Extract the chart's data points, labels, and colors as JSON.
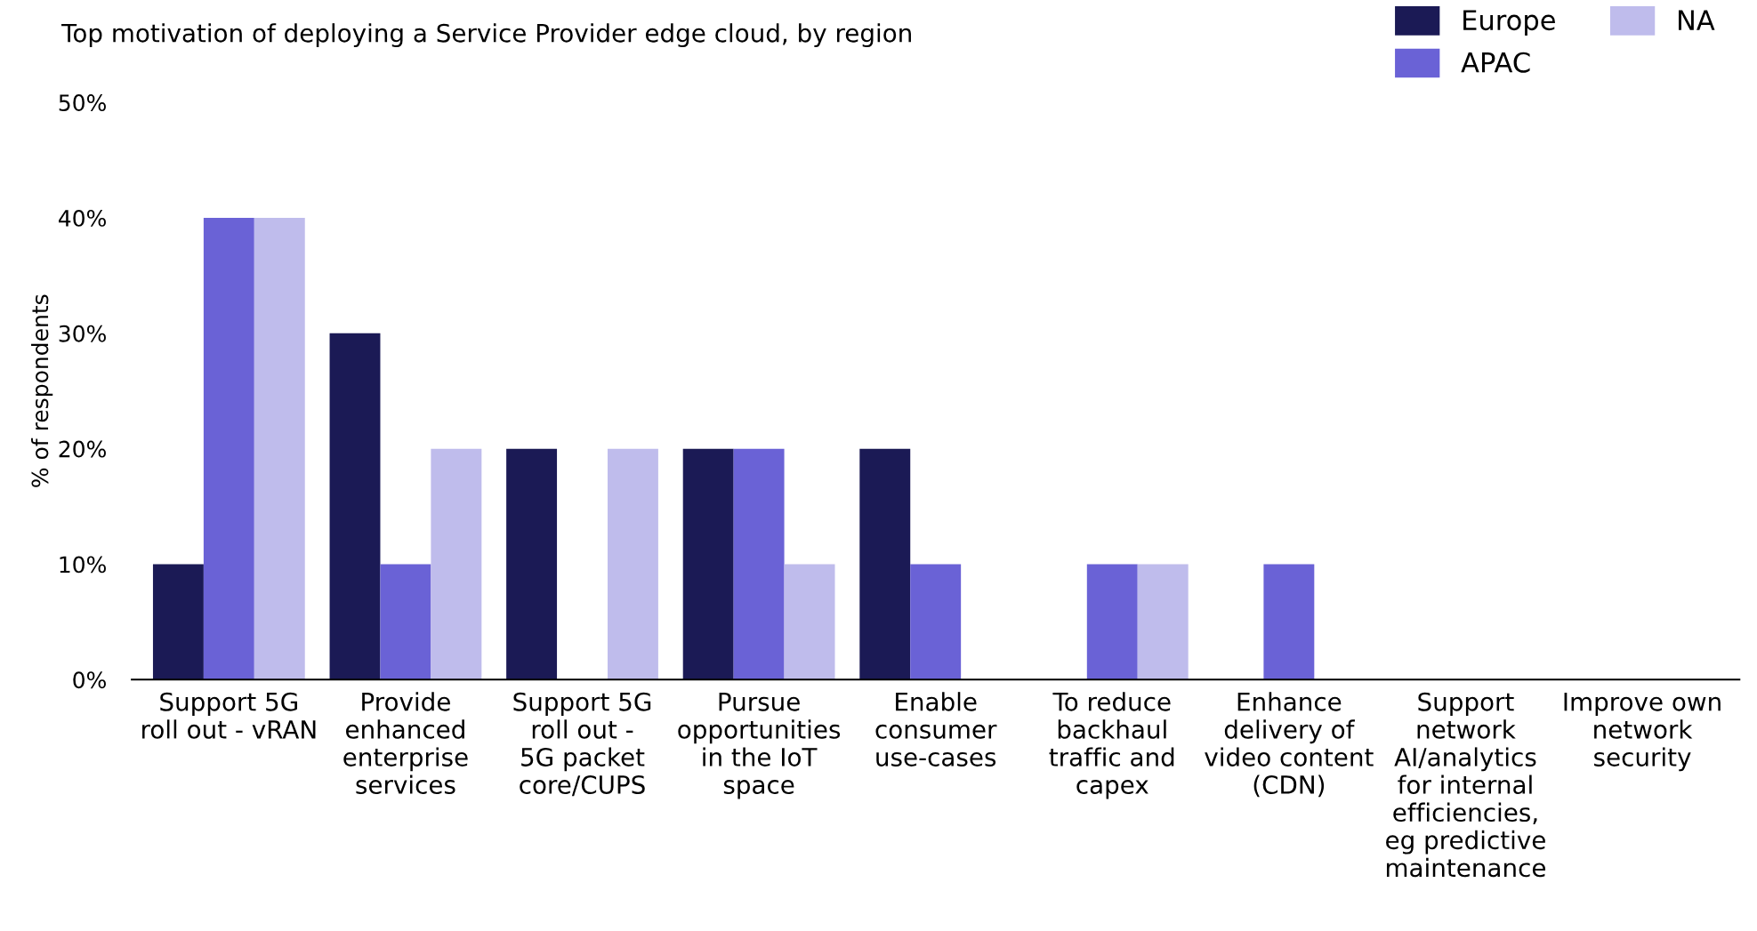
{
  "chart_data": {
    "type": "bar",
    "title": "Top motivation of deploying a Service Provider edge cloud, by region",
    "ylabel": "% of respondents",
    "categories": [
      "Support 5G\nroll out - vRAN",
      "Provide\nenhanced\nenterprise\nservices",
      "Support 5G\nroll out -\n5G packet\ncore/CUPS",
      "Pursue\nopportunities\nin the IoT\nspace",
      "Enable\nconsumer\nuse-cases",
      "To reduce\nbackhaul\ntraffic and\ncapex",
      "Enhance\ndelivery of\nvideo content\n(CDN)",
      "Support\nnetwork\nAI/analytics\nfor internal\nefficiencies,\neg predictive\nmaintenance",
      "Improve own\nnetwork\nsecurity"
    ],
    "series": [
      {
        "name": "Europe",
        "color": "#1b1a55",
        "values": [
          10,
          30,
          20,
          20,
          20,
          0,
          0,
          0,
          0
        ]
      },
      {
        "name": "APAC",
        "color": "#6a62d6",
        "values": [
          40,
          10,
          0,
          20,
          10,
          10,
          10,
          0,
          0
        ]
      },
      {
        "name": "NA",
        "color": "#bfbcec",
        "values": [
          40,
          20,
          20,
          10,
          0,
          10,
          0,
          0,
          0
        ]
      }
    ],
    "ylim": [
      0,
      50
    ],
    "yticks": [
      {
        "value": 0,
        "label": "0%"
      },
      {
        "value": 10,
        "label": "10%"
      },
      {
        "value": 20,
        "label": "20%"
      },
      {
        "value": 30,
        "label": "30%"
      },
      {
        "value": 40,
        "label": "40%"
      },
      {
        "value": 50,
        "label": "50%"
      }
    ],
    "grid": false,
    "legend": "top right"
  }
}
